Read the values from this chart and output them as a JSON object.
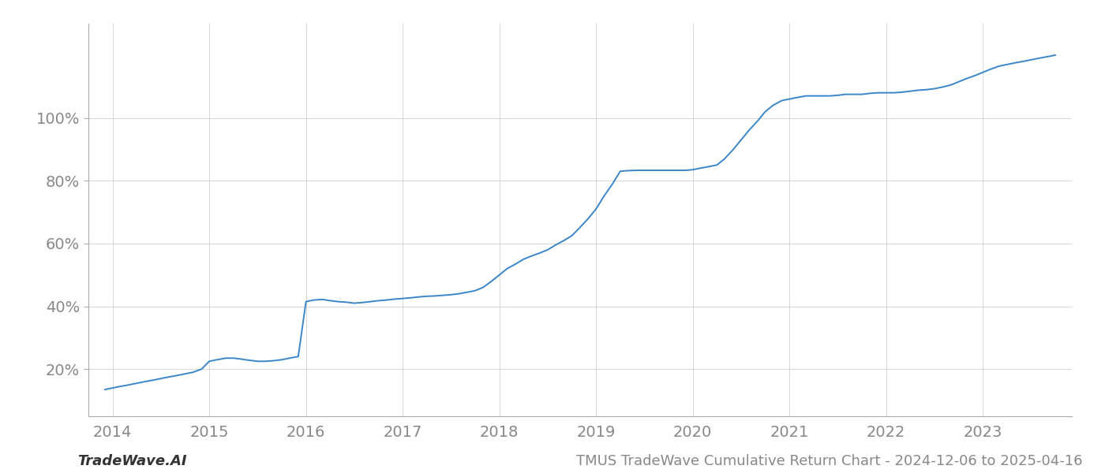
{
  "title": "TMUS TradeWave Cumulative Return Chart - 2024-12-06 to 2025-04-16",
  "watermark": "TradeWave.AI",
  "line_color": "#3a86c8",
  "line_width": 1.4,
  "background_color": "#ffffff",
  "grid_color": "#cccccc",
  "x_years": [
    2013.92,
    2014.0,
    2014.08,
    2014.17,
    2014.25,
    2014.33,
    2014.42,
    2014.5,
    2014.58,
    2014.67,
    2014.75,
    2014.83,
    2014.92,
    2015.0,
    2015.08,
    2015.17,
    2015.25,
    2015.33,
    2015.42,
    2015.5,
    2015.58,
    2015.67,
    2015.75,
    2015.83,
    2015.92,
    2016.0,
    2016.08,
    2016.17,
    2016.25,
    2016.33,
    2016.42,
    2016.5,
    2016.58,
    2016.67,
    2016.75,
    2016.83,
    2016.92,
    2017.0,
    2017.08,
    2017.17,
    2017.25,
    2017.33,
    2017.42,
    2017.5,
    2017.58,
    2017.67,
    2017.75,
    2017.83,
    2017.92,
    2018.0,
    2018.08,
    2018.17,
    2018.25,
    2018.33,
    2018.42,
    2018.5,
    2018.58,
    2018.67,
    2018.75,
    2018.83,
    2018.92,
    2019.0,
    2019.08,
    2019.17,
    2019.25,
    2019.33,
    2019.42,
    2019.5,
    2019.58,
    2019.67,
    2019.75,
    2019.83,
    2019.92,
    2020.0,
    2020.08,
    2020.17,
    2020.25,
    2020.33,
    2020.42,
    2020.5,
    2020.58,
    2020.67,
    2020.75,
    2020.83,
    2020.92,
    2021.0,
    2021.08,
    2021.17,
    2021.25,
    2021.33,
    2021.42,
    2021.5,
    2021.58,
    2021.67,
    2021.75,
    2021.83,
    2021.92,
    2022.0,
    2022.08,
    2022.17,
    2022.25,
    2022.33,
    2022.42,
    2022.5,
    2022.58,
    2022.67,
    2022.75,
    2022.83,
    2022.92,
    2023.0,
    2023.08,
    2023.17,
    2023.25,
    2023.33,
    2023.42,
    2023.5,
    2023.58,
    2023.67,
    2023.75
  ],
  "y_values": [
    13.5,
    14.0,
    14.5,
    15.0,
    15.5,
    16.0,
    16.5,
    17.0,
    17.5,
    18.0,
    18.5,
    19.0,
    20.0,
    22.5,
    23.0,
    23.5,
    23.5,
    23.2,
    22.8,
    22.5,
    22.5,
    22.7,
    23.0,
    23.5,
    24.0,
    41.5,
    42.0,
    42.2,
    41.8,
    41.5,
    41.3,
    41.0,
    41.2,
    41.5,
    41.8,
    42.0,
    42.3,
    42.5,
    42.7,
    43.0,
    43.2,
    43.3,
    43.5,
    43.7,
    44.0,
    44.5,
    45.0,
    46.0,
    48.0,
    50.0,
    52.0,
    53.5,
    55.0,
    56.0,
    57.0,
    58.0,
    59.5,
    61.0,
    62.5,
    65.0,
    68.0,
    71.0,
    75.0,
    79.0,
    83.0,
    83.2,
    83.3,
    83.3,
    83.3,
    83.3,
    83.3,
    83.3,
    83.3,
    83.5,
    84.0,
    84.5,
    85.0,
    87.0,
    90.0,
    93.0,
    96.0,
    99.0,
    102.0,
    104.0,
    105.5,
    106.0,
    106.5,
    107.0,
    107.0,
    107.0,
    107.0,
    107.2,
    107.5,
    107.5,
    107.5,
    107.8,
    108.0,
    108.0,
    108.0,
    108.2,
    108.5,
    108.8,
    109.0,
    109.3,
    109.8,
    110.5,
    111.5,
    112.5,
    113.5,
    114.5,
    115.5,
    116.5,
    117.0,
    117.5,
    118.0,
    118.5,
    119.0,
    119.5,
    120.0
  ],
  "x_tick_labels": [
    "2014",
    "2015",
    "2016",
    "2017",
    "2018",
    "2019",
    "2020",
    "2021",
    "2022",
    "2023"
  ],
  "x_tick_positions": [
    2014,
    2015,
    2016,
    2017,
    2018,
    2019,
    2020,
    2021,
    2022,
    2023
  ],
  "y_ticks": [
    20,
    40,
    60,
    80,
    100
  ],
  "y_tick_labels": [
    "20%",
    "40%",
    "60%",
    "80%",
    "100%"
  ],
  "xlim": [
    2013.75,
    2023.92
  ],
  "ylim": [
    5,
    130
  ],
  "tick_label_color": "#888888",
  "tick_fontsize": 14,
  "title_fontsize": 13,
  "watermark_fontsize": 13,
  "spine_color": "#aaaaaa"
}
